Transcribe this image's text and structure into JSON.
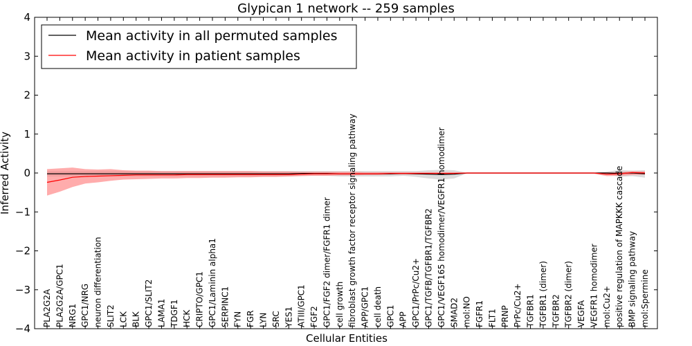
{
  "chart_data": {
    "type": "line",
    "title": "Glypican 1 network -- 259 samples",
    "xlabel": "Cellular Entities",
    "ylabel": "Inferred Activity",
    "ylim": [
      -4,
      4
    ],
    "yticks": [
      -4,
      -3,
      -2,
      -1,
      0,
      1,
      2,
      3,
      4
    ],
    "ytick_labels": [
      "−4",
      "−3",
      "−2",
      "−1",
      "0",
      "1",
      "2",
      "3",
      "4"
    ],
    "legend_position": "top-left",
    "categories": [
      "PLA2G2A",
      "PLA2G2A/GPC1",
      "NRG1",
      "GPC1/NRG",
      "neuron differentiation",
      "SLIT2",
      "LCK",
      "BLK",
      "GPC1/SLIT2",
      "LAMA1",
      "TDGF1",
      "HCK",
      "CRIPTO/GPC1",
      "GPC1/Laminin alpha1",
      "SERPINC1",
      "FYN",
      "FGR",
      "LYN",
      "SRC",
      "YES1",
      "ATIII/GPC1",
      "FGF2",
      "GPC1/FGF2 dimer/FGFR1 dimer",
      "cell growth",
      "fibroblast growth factor receptor signaling pathway",
      "APP/GPC1",
      "cell death",
      "GPC1",
      "APP",
      "GPC1/PrPc/Cu2+",
      "GPC1/TGFB/TGFBR1/TGFBR2",
      "GPC1/VEGF165 homodimer/VEGFR1 homodimer",
      "SMAD2",
      "mol:NO",
      "FGFR1",
      "FLT1",
      "PRNP",
      "PrPc/Cu2+",
      "TGFBR1",
      "TGFBR1 (dimer)",
      "TGFBR2",
      "TGFBR2 (dimer)",
      "VEGFA",
      "VEGFR1 homodimer",
      "mol:Cu2+",
      "positive regulation of MAPKKK cascade",
      "BMP signaling pathway",
      "mol:Spermine"
    ],
    "series": [
      {
        "name": "Mean activity in all permuted samples",
        "color": "#000000",
        "band_color": "#bfbfbf",
        "values": [
          -0.02,
          -0.02,
          -0.02,
          -0.02,
          -0.02,
          -0.02,
          -0.02,
          -0.02,
          -0.02,
          -0.02,
          -0.02,
          -0.02,
          -0.02,
          -0.02,
          -0.02,
          -0.02,
          -0.02,
          -0.02,
          -0.02,
          -0.02,
          -0.01,
          -0.01,
          -0.01,
          -0.02,
          -0.02,
          -0.02,
          -0.02,
          -0.02,
          -0.01,
          -0.02,
          -0.03,
          -0.04,
          -0.03,
          0.0,
          0.0,
          0.0,
          0.0,
          0.0,
          0.0,
          0.0,
          0.0,
          0.0,
          0.0,
          0.0,
          0.0,
          -0.01,
          0.0,
          -0.02
        ],
        "lower": [
          -0.09,
          -0.09,
          -0.09,
          -0.09,
          -0.09,
          -0.09,
          -0.09,
          -0.09,
          -0.09,
          -0.09,
          -0.09,
          -0.09,
          -0.09,
          -0.09,
          -0.09,
          -0.09,
          -0.09,
          -0.09,
          -0.09,
          -0.09,
          -0.07,
          -0.07,
          -0.07,
          -0.09,
          -0.09,
          -0.09,
          -0.09,
          -0.09,
          -0.07,
          -0.1,
          -0.14,
          -0.17,
          -0.14,
          -0.01,
          -0.01,
          -0.01,
          -0.01,
          -0.01,
          -0.01,
          -0.01,
          -0.01,
          -0.01,
          -0.01,
          -0.01,
          -0.03,
          -0.1,
          -0.08,
          -0.12
        ],
        "upper": [
          0.05,
          0.05,
          0.05,
          0.05,
          0.05,
          0.05,
          0.05,
          0.05,
          0.05,
          0.05,
          0.05,
          0.05,
          0.05,
          0.05,
          0.05,
          0.05,
          0.05,
          0.05,
          0.05,
          0.05,
          0.05,
          0.05,
          0.05,
          0.05,
          0.05,
          0.05,
          0.05,
          0.05,
          0.05,
          0.05,
          0.07,
          0.08,
          0.07,
          0.01,
          0.01,
          0.01,
          0.01,
          0.01,
          0.01,
          0.01,
          0.01,
          0.01,
          0.01,
          0.01,
          0.03,
          0.08,
          0.06,
          0.07
        ]
      },
      {
        "name": "Mean activity in patient samples",
        "color": "#ff0000",
        "band_color": "#ff8080",
        "values": [
          -0.24,
          -0.18,
          -0.11,
          -0.09,
          -0.08,
          -0.07,
          -0.06,
          -0.05,
          -0.05,
          -0.05,
          -0.05,
          -0.04,
          -0.04,
          -0.04,
          -0.04,
          -0.04,
          -0.04,
          -0.04,
          -0.04,
          -0.04,
          -0.03,
          -0.02,
          -0.02,
          -0.02,
          -0.02,
          -0.02,
          -0.02,
          -0.01,
          -0.01,
          -0.01,
          -0.01,
          -0.01,
          -0.01,
          0.0,
          0.0,
          0.0,
          0.0,
          0.0,
          0.0,
          0.0,
          0.0,
          0.0,
          0.0,
          0.0,
          -0.03,
          -0.02,
          0.01,
          0.0
        ],
        "lower": [
          -0.58,
          -0.48,
          -0.36,
          -0.27,
          -0.24,
          -0.2,
          -0.17,
          -0.16,
          -0.15,
          -0.14,
          -0.14,
          -0.13,
          -0.13,
          -0.12,
          -0.12,
          -0.11,
          -0.11,
          -0.1,
          -0.1,
          -0.09,
          -0.08,
          -0.07,
          -0.07,
          -0.06,
          -0.06,
          -0.05,
          -0.05,
          -0.04,
          -0.04,
          -0.04,
          -0.04,
          -0.04,
          -0.03,
          -0.02,
          -0.02,
          -0.02,
          -0.02,
          -0.02,
          -0.02,
          -0.02,
          -0.02,
          -0.02,
          -0.02,
          -0.02,
          -0.08,
          -0.07,
          -0.05,
          -0.04
        ],
        "upper": [
          0.1,
          0.12,
          0.14,
          0.1,
          0.09,
          0.1,
          0.07,
          0.06,
          0.06,
          0.05,
          0.05,
          0.05,
          0.05,
          0.05,
          0.05,
          0.05,
          0.05,
          0.04,
          0.04,
          0.04,
          0.03,
          0.03,
          0.03,
          0.03,
          0.03,
          0.02,
          0.02,
          0.02,
          0.02,
          0.02,
          0.02,
          0.02,
          0.02,
          0.01,
          0.01,
          0.01,
          0.01,
          0.01,
          0.01,
          0.01,
          0.01,
          0.01,
          0.01,
          0.01,
          0.02,
          0.02,
          0.05,
          0.04
        ]
      }
    ]
  }
}
